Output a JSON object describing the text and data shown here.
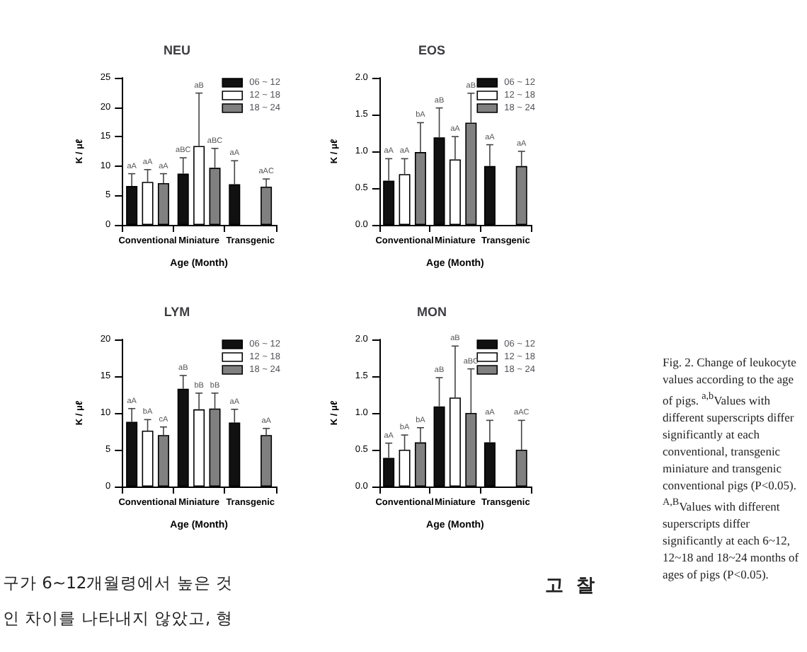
{
  "chart_data": [
    {
      "type": "bar",
      "title": "NEU",
      "xlabel": "Age (Month)",
      "ylabel": "K / μℓ",
      "categories": [
        "Conventional",
        "Miniature",
        "Transgenic"
      ],
      "ylim": [
        0,
        25
      ],
      "yticks": [
        0,
        5,
        10,
        15,
        20,
        25
      ],
      "grid": false,
      "legend": "top right",
      "series": [
        {
          "name": "06 ~ 12",
          "color": "#111111",
          "values": [
            6.6,
            8.7,
            6.9
          ],
          "errors": [
            [
              6.6,
              8.7
            ],
            [
              8.7,
              11.4
            ],
            [
              6.9,
              10.9
            ]
          ]
        },
        {
          "name": "12 ~ 18",
          "color": "#ffffff",
          "values": [
            7.3,
            13.4,
            null
          ],
          "errors": [
            [
              7.3,
              9.4
            ],
            [
              13.4,
              22.4
            ],
            null
          ]
        },
        {
          "name": "18 ~ 24",
          "color": "#808080",
          "values": [
            7.1,
            9.7,
            6.5
          ],
          "errors": [
            [
              7.1,
              8.7
            ],
            [
              9.7,
              13
            ],
            [
              6.5,
              7.8
            ]
          ]
        }
      ],
      "annotations": [
        "aA",
        "aA",
        "aA",
        "aBC",
        "aB",
        "aBC",
        "aA",
        "aAC"
      ]
    },
    {
      "type": "bar",
      "title": "EOS",
      "xlabel": "Age (Month)",
      "ylabel": "K / μℓ",
      "categories": [
        "Conventional",
        "Miniature",
        "Transgenic"
      ],
      "ylim": [
        0,
        2
      ],
      "yticks": [
        {
          "value": 0,
          "label": "0.0"
        },
        {
          "value": 0.5,
          "label": "0.5"
        },
        {
          "value": 1,
          "label": "1.0"
        },
        {
          "value": 1.5,
          "label": "1.5"
        },
        {
          "value": 2,
          "label": "2.0"
        }
      ],
      "grid": false,
      "legend": "top right",
      "series": [
        {
          "name": "06 ~ 12",
          "color": "#111111",
          "values": [
            0.6,
            1.19,
            0.8
          ],
          "errors": [
            [
              0.6,
              0.9
            ],
            [
              1.19,
              1.59
            ],
            [
              0.8,
              1.09
            ]
          ]
        },
        {
          "name": "12 ~ 18",
          "color": "#ffffff",
          "values": [
            0.69,
            0.89,
            null
          ],
          "errors": [
            [
              0.69,
              0.9
            ],
            [
              0.89,
              1.2
            ],
            null
          ]
        },
        {
          "name": "18 ~ 24",
          "color": "#808080",
          "values": [
            0.99,
            1.39,
            0.8
          ],
          "errors": [
            [
              0.99,
              1.39
            ],
            [
              1.39,
              1.79
            ],
            [
              0.8,
              1.0
            ]
          ]
        }
      ],
      "annotations": [
        "aA",
        "aA",
        "bA",
        "aB",
        "aA",
        "aB",
        "aA",
        "aA"
      ]
    },
    {
      "type": "bar",
      "title": "LYM",
      "xlabel": "Age (Month)",
      "ylabel": "K / μℓ",
      "categories": [
        "Conventional",
        "Miniature",
        "Transgenic"
      ],
      "ylim": [
        0,
        20
      ],
      "yticks": [
        0,
        5,
        10,
        15,
        20
      ],
      "grid": false,
      "legend": "top right",
      "series": [
        {
          "name": "06 ~ 12",
          "color": "#111111",
          "values": [
            8.8,
            13.3,
            8.7
          ],
          "errors": [
            [
              8.8,
              10.6
            ],
            [
              13.3,
              15.1
            ],
            [
              8.7,
              10.5
            ]
          ]
        },
        {
          "name": "12 ~ 18",
          "color": "#ffffff",
          "values": [
            7.6,
            10.5,
            null
          ],
          "errors": [
            [
              7.6,
              9.1
            ],
            [
              10.5,
              12.7
            ],
            null
          ]
        },
        {
          "name": "18 ~ 24",
          "color": "#808080",
          "values": [
            7.0,
            10.6,
            7.0
          ],
          "errors": [
            [
              7.0,
              8.1
            ],
            [
              10.6,
              12.7
            ],
            [
              7.0,
              7.9
            ]
          ]
        }
      ],
      "annotations": [
        "aA",
        "bA",
        "cA",
        "aB",
        "bB",
        "bB",
        "aA",
        "aA"
      ]
    },
    {
      "type": "bar",
      "title": "MON",
      "xlabel": "Age (Month)",
      "ylabel": "K / μℓ",
      "categories": [
        "Conventional",
        "Miniature",
        "Transgenic"
      ],
      "ylim": [
        0,
        2
      ],
      "yticks": [
        {
          "value": 0,
          "label": "0.0"
        },
        {
          "value": 0.5,
          "label": "0.5"
        },
        {
          "value": 1,
          "label": "1.0"
        },
        {
          "value": 1.5,
          "label": "1.5"
        },
        {
          "value": 2,
          "label": "2.0"
        }
      ],
      "grid": false,
      "legend": "top right",
      "series": [
        {
          "name": "06 ~ 12",
          "color": "#111111",
          "values": [
            0.39,
            1.09,
            0.6
          ],
          "errors": [
            [
              0.39,
              0.59
            ],
            [
              1.09,
              1.48
            ],
            [
              0.6,
              0.9
            ]
          ]
        },
        {
          "name": "12 ~ 18",
          "color": "#ffffff",
          "values": [
            0.5,
            1.21,
            null
          ],
          "errors": [
            [
              0.5,
              0.7
            ],
            [
              1.21,
              1.91
            ],
            null
          ]
        },
        {
          "name": "18 ~ 24",
          "color": "#808080",
          "values": [
            0.6,
            1.0,
            0.5
          ],
          "errors": [
            [
              0.6,
              0.8
            ],
            [
              1.0,
              1.6
            ],
            [
              0.5,
              0.9
            ]
          ]
        }
      ],
      "annotations": [
        "aA",
        "bA",
        "bA",
        "aB",
        "aB",
        "aBC",
        "aA",
        "aAC"
      ]
    },
    {
      "type": "other",
      "annotations": [
        "Fig. 2. Change of leukocyte values according to the age of pigs. $^{a,b}$Values with different superscripts differ significantly at each conventional, transgenic miniature and transgenic conventional pigs (P<0.05). $^{A,B}$Values with different superscripts differ significantly at each 6~12, 12~18 and 18~24 months of ages of pigs (P<0.05).",
        "구가 6~12개월령에서 높은 것",
        "인 차이를 나타내지 않았고, 형",
        "고  찰"
      ]
    }
  ]
}
